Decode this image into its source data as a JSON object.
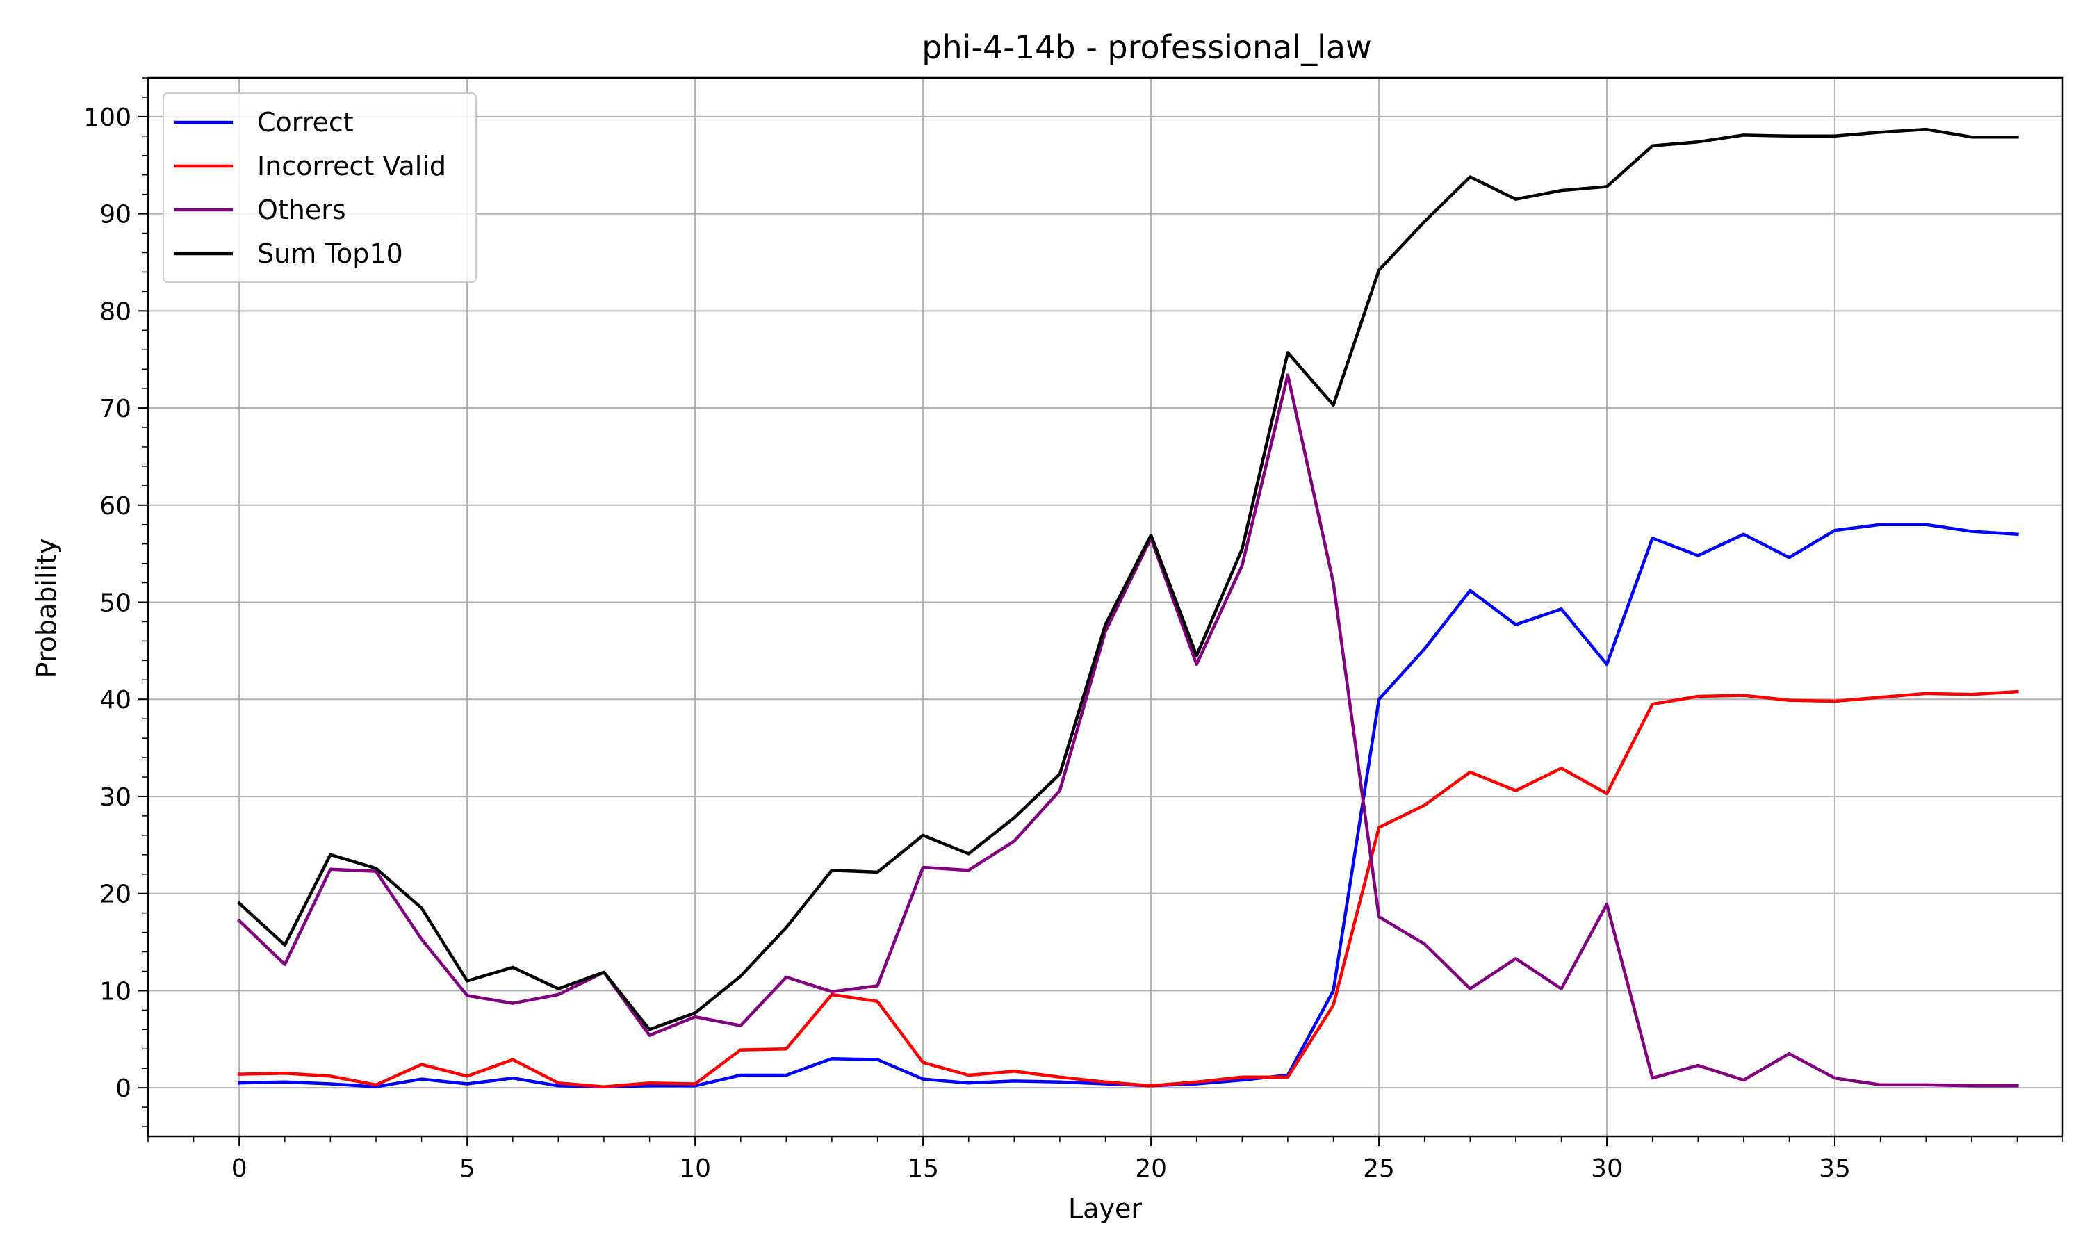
{
  "chart_data": {
    "type": "line",
    "title": "phi-4-14b - professional_law",
    "xlabel": "Layer",
    "ylabel": "Probability",
    "xlim": [
      -2,
      40
    ],
    "ylim": [
      -5,
      104
    ],
    "xticks": [
      0,
      5,
      10,
      15,
      20,
      25,
      30,
      35
    ],
    "yticks": [
      0,
      10,
      20,
      30,
      40,
      50,
      60,
      70,
      80,
      90,
      100
    ],
    "grid": true,
    "legend_position": "top-left",
    "x": [
      0,
      1,
      2,
      3,
      4,
      5,
      6,
      7,
      8,
      9,
      10,
      11,
      12,
      13,
      14,
      15,
      16,
      17,
      18,
      19,
      20,
      21,
      22,
      23,
      24,
      25,
      26,
      27,
      28,
      29,
      30,
      31,
      32,
      33,
      34,
      35,
      36,
      37,
      38,
      39
    ],
    "series": [
      {
        "name": "Correct",
        "color": "#0000ff",
        "values": [
          0.5,
          0.6,
          0.4,
          0.1,
          0.9,
          0.4,
          1.0,
          0.2,
          0.1,
          0.2,
          0.2,
          1.3,
          1.3,
          3.0,
          2.9,
          0.9,
          0.5,
          0.7,
          0.6,
          0.4,
          0.2,
          0.4,
          0.8,
          1.3,
          10.0,
          40.0,
          45.2,
          51.2,
          47.7,
          49.3,
          43.6,
          56.6,
          54.8,
          57.0,
          54.6,
          57.4,
          58.0,
          58.0,
          57.3,
          57.0
        ]
      },
      {
        "name": "Incorrect Valid",
        "color": "#ff0000",
        "values": [
          1.4,
          1.5,
          1.2,
          0.3,
          2.4,
          1.2,
          2.9,
          0.5,
          0.1,
          0.5,
          0.4,
          3.9,
          4.0,
          9.6,
          8.9,
          2.6,
          1.3,
          1.7,
          1.1,
          0.6,
          0.2,
          0.6,
          1.1,
          1.1,
          8.5,
          26.8,
          29.1,
          32.5,
          30.6,
          32.9,
          30.3,
          39.5,
          40.3,
          40.4,
          39.9,
          39.8,
          40.2,
          40.6,
          40.5,
          40.8
        ]
      },
      {
        "name": "Others",
        "color": "#800080",
        "values": [
          17.2,
          12.7,
          22.5,
          22.3,
          15.3,
          9.5,
          8.7,
          9.6,
          11.9,
          5.4,
          7.3,
          6.4,
          11.4,
          9.9,
          10.5,
          22.7,
          22.4,
          25.4,
          30.6,
          47.0,
          56.6,
          43.6,
          53.8,
          73.4,
          52.0,
          17.6,
          14.8,
          10.2,
          13.3,
          10.2,
          18.9,
          1.0,
          2.3,
          0.8,
          3.5,
          1.0,
          0.3,
          0.3,
          0.2,
          0.2
        ]
      },
      {
        "name": "Sum Top10",
        "color": "#000000",
        "values": [
          19.0,
          14.7,
          24.0,
          22.6,
          18.5,
          11.0,
          12.4,
          10.2,
          11.9,
          6.0,
          7.7,
          11.5,
          16.5,
          22.4,
          22.2,
          26.0,
          24.1,
          27.8,
          32.3,
          47.7,
          56.9,
          44.5,
          55.5,
          75.7,
          70.3,
          84.2,
          89.2,
          93.8,
          91.5,
          92.4,
          92.8,
          97.0,
          97.4,
          98.1,
          98.0,
          98.0,
          98.4,
          98.7,
          97.9,
          97.9
        ]
      }
    ]
  }
}
